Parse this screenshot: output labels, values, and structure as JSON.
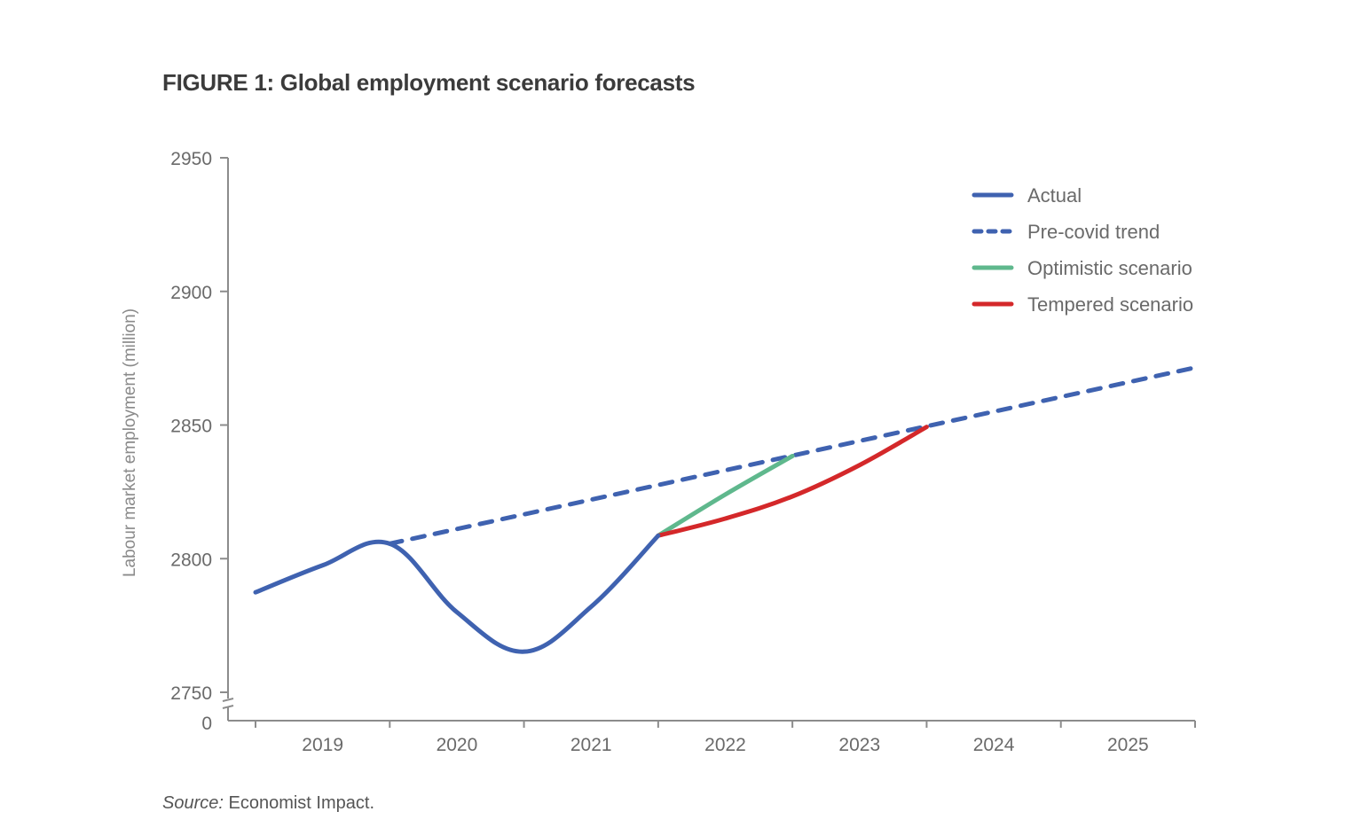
{
  "figure": {
    "title": "FIGURE 1: Global employment scenario forecasts",
    "source_label": "Source:",
    "source_text": " Economist Impact."
  },
  "chart_data": {
    "type": "line",
    "title": "FIGURE 1: Global employment scenario forecasts",
    "xlabel": "",
    "ylabel": "Labour market employment (million)",
    "x_categories": [
      "2019",
      "2020",
      "2021",
      "2022",
      "2023",
      "2024",
      "2025"
    ],
    "xlim": [
      2019,
      2026
    ],
    "ylim": [
      2750,
      2950
    ],
    "yticks": [
      2750,
      2800,
      2850,
      2900,
      2950
    ],
    "ytick_labels": [
      "2750",
      "2800",
      "2850",
      "2900",
      "2950"
    ],
    "axis_break": {
      "lower_label": "0"
    },
    "grid": false,
    "legend_position": "top-right",
    "series": [
      {
        "name": "Actual",
        "color": "#3f62b0",
        "style": "solid",
        "points": [
          [
            2019.0,
            2787.4
          ],
          [
            2019.5,
            2797.5
          ],
          [
            2020.0,
            2805.6
          ],
          [
            2020.5,
            2780
          ],
          [
            2021.0,
            2765.2
          ],
          [
            2021.5,
            2782
          ],
          [
            2022.0,
            2808.6
          ]
        ]
      },
      {
        "name": "Pre-covid trend",
        "color": "#3f62b0",
        "style": "dashed",
        "points": [
          [
            2020.0,
            2805.6
          ],
          [
            2026.0,
            2871.5
          ]
        ]
      },
      {
        "name": "Optimistic scenario",
        "color": "#5fb88d",
        "style": "solid",
        "points": [
          [
            2022.0,
            2808.6
          ],
          [
            2022.5,
            2824
          ],
          [
            2023.0,
            2838.4
          ]
        ]
      },
      {
        "name": "Tempered scenario",
        "color": "#d4282a",
        "style": "solid",
        "points": [
          [
            2022.0,
            2808.6
          ],
          [
            2022.5,
            2815
          ],
          [
            2023.0,
            2823.3
          ],
          [
            2023.5,
            2835
          ],
          [
            2024.0,
            2849.3
          ]
        ]
      }
    ]
  }
}
